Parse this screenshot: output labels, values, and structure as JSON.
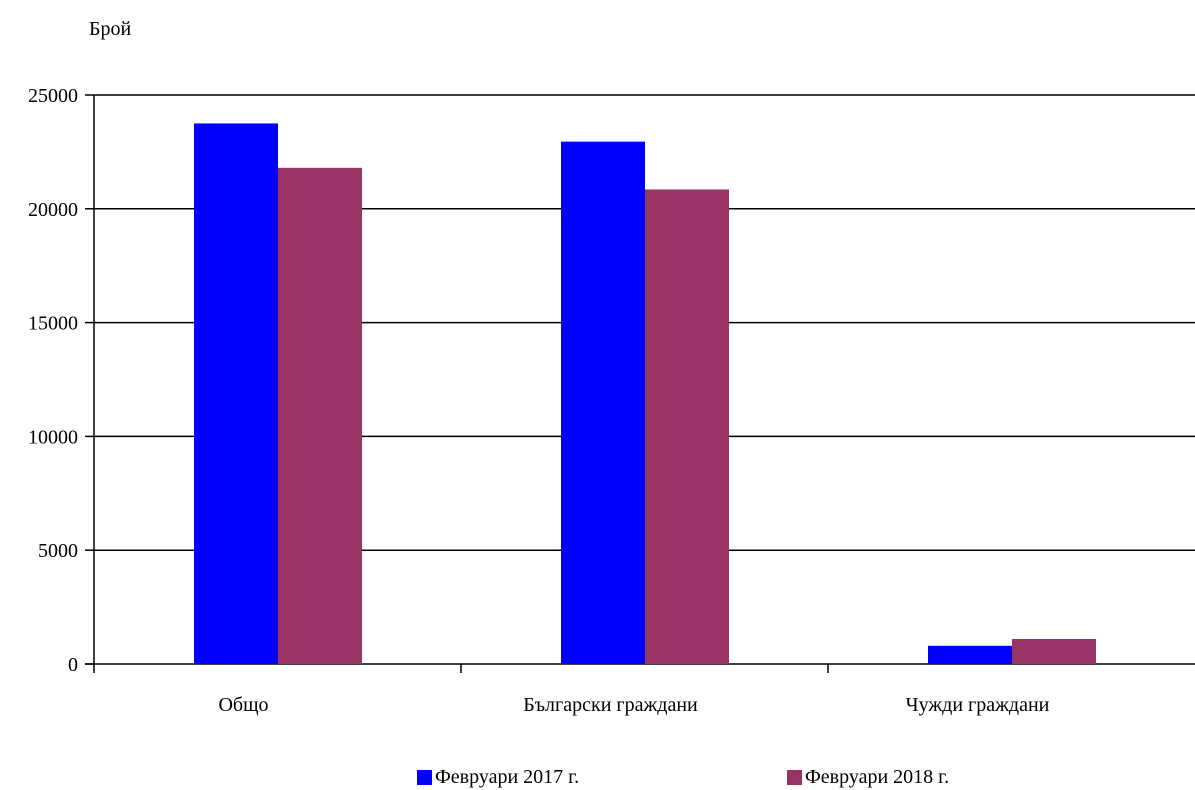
{
  "chart_data": {
    "type": "bar",
    "title": "",
    "ylabel": "Брой",
    "xlabel": "",
    "ylim": [
      0,
      25000
    ],
    "yticks": [
      0,
      5000,
      10000,
      15000,
      20000,
      25000
    ],
    "grid": true,
    "legend_position": "bottom",
    "categories": [
      "Общо",
      "Български граждани",
      "Чужди граждани"
    ],
    "series": [
      {
        "name": "Февруари 2017 г.",
        "color": "#0000ff",
        "values": [
          23750,
          22950,
          800
        ]
      },
      {
        "name": "Февруари 2018 г.",
        "color": "#993366",
        "values": [
          21800,
          20850,
          1100
        ]
      }
    ]
  }
}
